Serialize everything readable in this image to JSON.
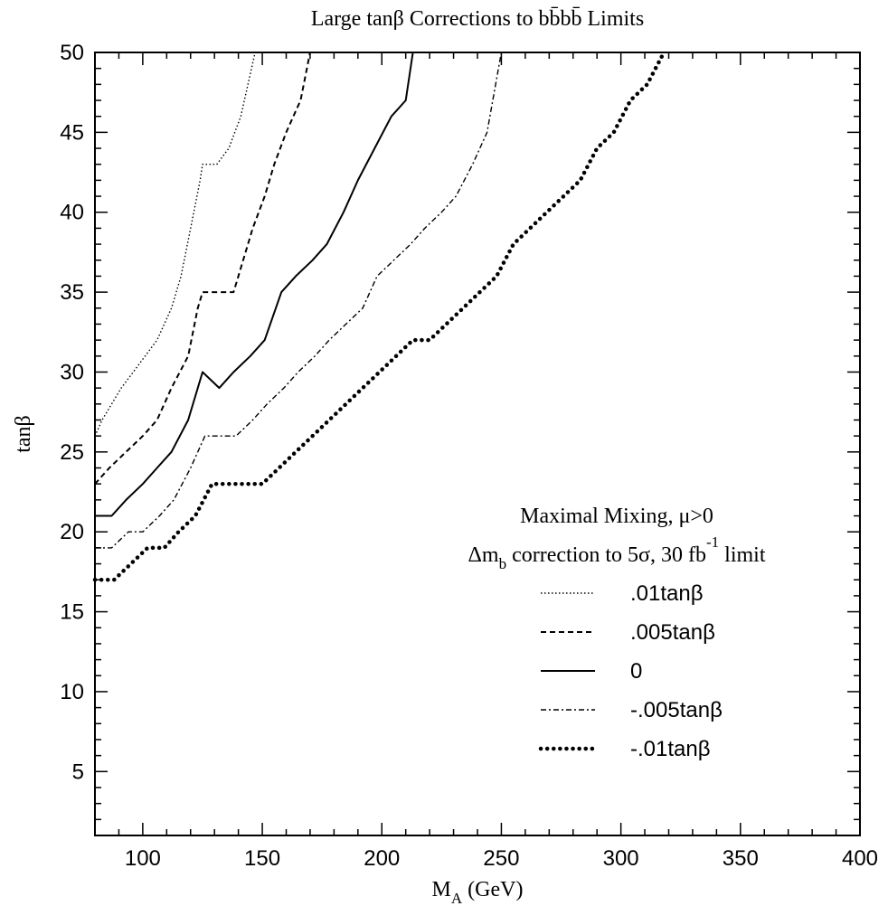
{
  "chart_data": {
    "type": "line",
    "title": "Large tanβ Corrections to bb̄bb̄ Limits",
    "xlabel": "M",
    "xlabel_sub": "A",
    "xlabel_unit": "(GeV)",
    "ylabel": "tanβ",
    "xlim": [
      80,
      400
    ],
    "ylim": [
      1,
      50
    ],
    "x_ticks": [
      100,
      150,
      200,
      250,
      300,
      350,
      400
    ],
    "y_ticks": [
      5,
      10,
      15,
      20,
      25,
      30,
      35,
      40,
      45,
      50
    ],
    "grid": false,
    "legend_position": "bottom-right",
    "legend_title_1": "Maximal Mixing, μ>0",
    "legend_title_2_pre": "Δm",
    "legend_title_2_sub": "b",
    "legend_title_2_post": " correction to 5σ, 30 fb",
    "legend_title_2_sup": "-1",
    "legend_title_2_end": " limit",
    "series": [
      {
        "name": ".01tanβ",
        "style": "dotted",
        "x": [
          80,
          83,
          87,
          91,
          96,
          101,
          106,
          112,
          116,
          120,
          124,
          125,
          131,
          136,
          141,
          144,
          147
        ],
        "y": [
          26,
          27,
          28,
          29,
          30,
          31,
          32,
          34,
          36,
          39,
          42,
          43,
          43,
          44,
          46,
          48,
          50
        ]
      },
      {
        "name": ".005tanβ",
        "style": "dashed",
        "x": [
          80,
          86,
          93,
          100,
          106,
          112,
          119,
          123,
          125,
          132,
          138,
          142,
          146,
          151,
          155,
          160,
          163,
          166,
          170,
          173
        ],
        "y": [
          23,
          24,
          25,
          26,
          27,
          29,
          31,
          34,
          35,
          35,
          35,
          37,
          39,
          41,
          43,
          45,
          46,
          47,
          50,
          50
        ]
      },
      {
        "name": "0",
        "style": "solid",
        "x": [
          80,
          87,
          93,
          100,
          106,
          112,
          119,
          125,
          132,
          138,
          145,
          151,
          158,
          164,
          171,
          177,
          184,
          190,
          197,
          204,
          210,
          213
        ],
        "y": [
          21,
          21,
          22,
          23,
          24,
          25,
          27,
          30,
          29,
          30,
          31,
          32,
          35,
          36,
          37,
          38,
          40,
          42,
          44,
          46,
          47,
          50
        ]
      },
      {
        "name": "-.005tanβ",
        "style": "dashdot",
        "x": [
          80,
          87,
          94,
          100,
          107,
          113,
          120,
          126,
          132,
          139,
          146,
          152,
          159,
          165,
          172,
          178,
          185,
          192,
          198,
          205,
          212,
          218,
          225,
          231,
          238,
          244,
          250
        ],
        "y": [
          19,
          19,
          20,
          20,
          21,
          22,
          24,
          26,
          26,
          26,
          27,
          28,
          29,
          30,
          31,
          32,
          33,
          34,
          36,
          37,
          38,
          39,
          40,
          41,
          43,
          45,
          50
        ]
      },
      {
        "name": "-.01tanβ",
        "style": "thick-dotted",
        "x": [
          80,
          88,
          95,
          102,
          109,
          115,
          122,
          129,
          136,
          143,
          150,
          157,
          164,
          171,
          178,
          185,
          192,
          199,
          206,
          213,
          220,
          227,
          234,
          241,
          248,
          255,
          262,
          269,
          276,
          283,
          290,
          297,
          304,
          311,
          318
        ],
        "y": [
          17,
          17,
          18,
          19,
          19,
          20,
          21,
          23,
          23,
          23,
          23,
          24,
          25,
          26,
          27,
          28,
          29,
          30,
          31,
          32,
          32,
          33,
          34,
          35,
          36,
          38,
          39,
          40,
          41,
          42,
          44,
          45,
          47,
          48,
          50
        ]
      }
    ]
  }
}
